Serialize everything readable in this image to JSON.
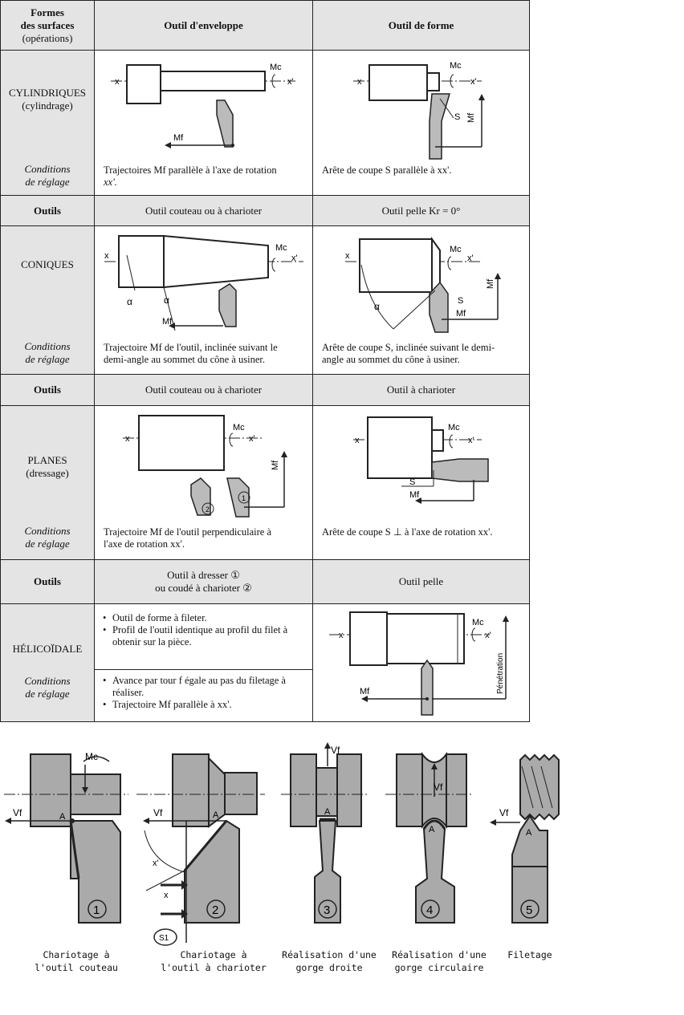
{
  "header": {
    "col1": [
      "Formes",
      "des surfaces",
      "(opérations)"
    ],
    "col2": "Outil d'enveloppe",
    "col3": "Outil de forme"
  },
  "cyl": {
    "title": "CYLINDRIQUES",
    "sub": "(cylindrage)",
    "cond": [
      "Conditions",
      "de réglage"
    ],
    "env_text": [
      "Trajectoires Mf parallèle à l'axe de rotation",
      "xx'."
    ],
    "forme_text": "Arête de coupe S parallèle à xx'.",
    "outils_label": "Outils",
    "outil_env": "Outil couteau ou à charioter",
    "outil_forme": "Outil pelle Kr = 0°",
    "labels": {
      "x": "x",
      "xp": "x'",
      "mc": "Mc",
      "mf": "Mf",
      "s": "S"
    }
  },
  "con": {
    "title": "CONIQUES",
    "cond": [
      "Conditions",
      "de réglage"
    ],
    "env_text": [
      "Trajectoire Mf de l'outil, inclinée suivant le",
      "demi-angle au sommet du cône à usiner."
    ],
    "forme_text": [
      "Arête de coupe S, inclinée suivant le demi-",
      "angle au sommet du cône à usiner."
    ],
    "outils_label": "Outils",
    "outil_env": "Outil couteau ou à charioter",
    "outil_forme": "Outil à charioter",
    "labels": {
      "alpha": "α"
    }
  },
  "plan": {
    "title": "PLANES",
    "sub": "(dressage)",
    "cond": [
      "Conditions",
      "de réglage"
    ],
    "env_text": [
      "Trajectoire Mf de l'outil perpendiculaire à",
      "l'axe de rotation xx'."
    ],
    "forme_text": "Arête de coupe S ⊥ à l'axe de rotation xx'.",
    "outils_label": "Outils",
    "outil_env": [
      "Outil à dresser ①",
      "ou coudé à charioter ②"
    ],
    "outil_forme": "Outil pelle",
    "labels": {
      "one": "1",
      "two": "2"
    }
  },
  "heli": {
    "title": "HÉLICOÏDALE",
    "cond": [
      "Conditions",
      "de réglage"
    ],
    "bullets_top": [
      "Outil de forme à fileter.",
      "Profil de l'outil identique au profil du filet à obtenir sur la pièce."
    ],
    "bullets_bot": [
      "Avance par tour f égale au pas du filetage à réaliser.",
      "Trajectoire Mf parallèle à xx'."
    ],
    "labels": {
      "pen": "Pénétration"
    }
  },
  "bottom": {
    "labels": {
      "mc": "Mc",
      "vf": "Vf",
      "a": "A",
      "x": "x",
      "xp": "x'",
      "s1": "S1"
    },
    "nums": [
      "1",
      "2",
      "3",
      "4",
      "5"
    ],
    "captions": [
      [
        "Chariotage à",
        "l'outil couteau"
      ],
      [
        "Chariotage à",
        "l'outil à charioter"
      ],
      [
        "Réalisation d'une",
        "gorge droite"
      ],
      [
        "Réalisation d'une",
        "gorge circulaire"
      ],
      [
        "Filetage",
        ""
      ]
    ]
  }
}
